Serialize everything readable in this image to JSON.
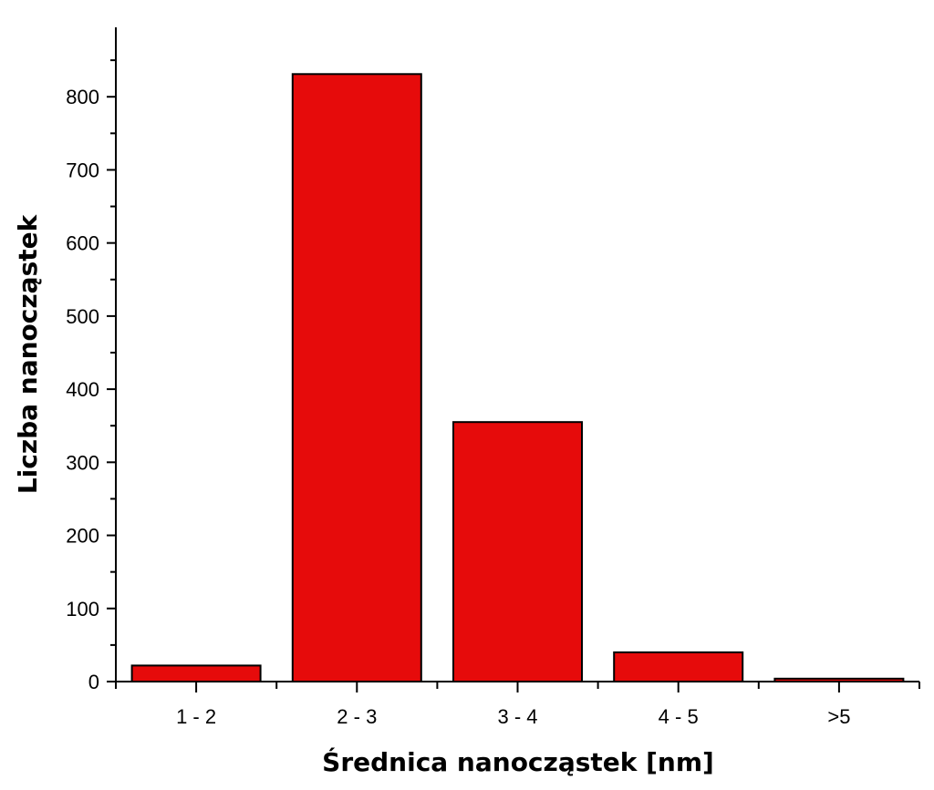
{
  "chart_data": {
    "type": "bar",
    "title": "",
    "xlabel": "Średnica nanocząstek [nm]",
    "ylabel": "Liczba nanocząstek",
    "categories": [
      "1 - 2",
      "2 - 3",
      "3 - 4",
      "4 - 5",
      ">5"
    ],
    "values": [
      22,
      831,
      355,
      40,
      4
    ],
    "ylim": [
      0,
      895
    ],
    "yticks": [
      0,
      100,
      200,
      300,
      400,
      500,
      600,
      700,
      800
    ],
    "grid": false,
    "legend": "none",
    "bar_color": "#e60b0b",
    "bar_edge_color": "#000000"
  }
}
